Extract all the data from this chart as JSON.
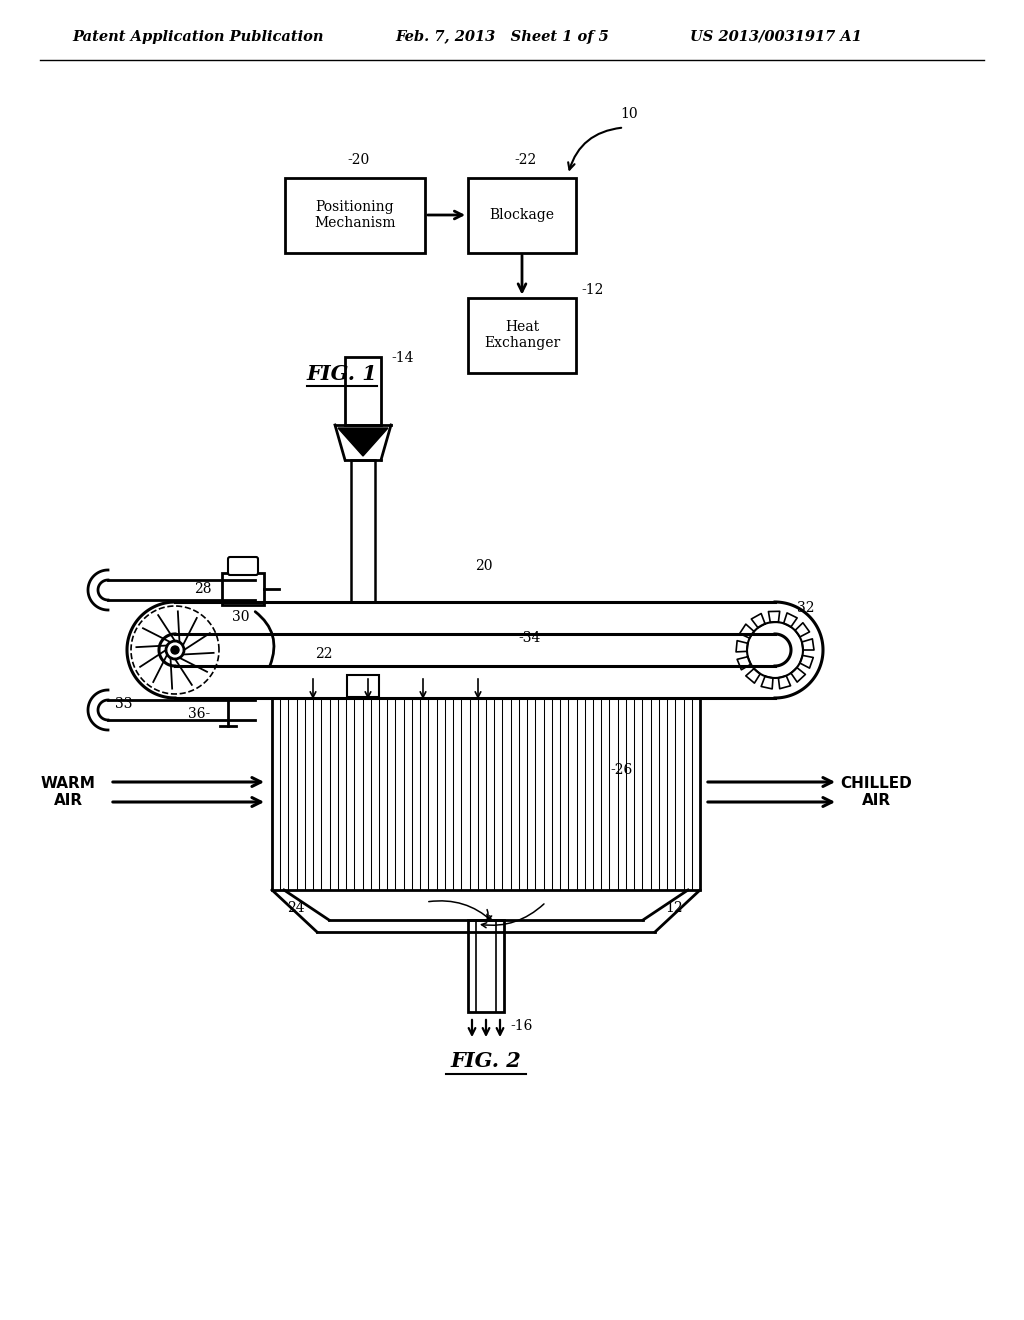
{
  "bg_color": "#ffffff",
  "line_color": "#000000",
  "header_left": "Patent Application Publication",
  "header_mid": "Feb. 7, 2013   Sheet 1 of 5",
  "header_right": "US 2013/0031917 A1",
  "fig1_label": "FIG. 1",
  "fig2_label": "FIG. 2",
  "box_positioning": "Positioning\nMechanism",
  "box_blockage": "Blockage",
  "box_heat": "Heat\nExchanger",
  "label_10": "10",
  "label_12": "12",
  "label_14": "14",
  "label_16": "16",
  "label_20": "20",
  "label_22": "22",
  "label_24": "24",
  "label_26": "26",
  "label_28": "28",
  "label_30": "30",
  "label_32": "32",
  "label_33": "33",
  "label_34": "34",
  "label_36": "36",
  "warm_air": "WARM\nAIR",
  "chilled_air": "CHILLED\nAIR"
}
